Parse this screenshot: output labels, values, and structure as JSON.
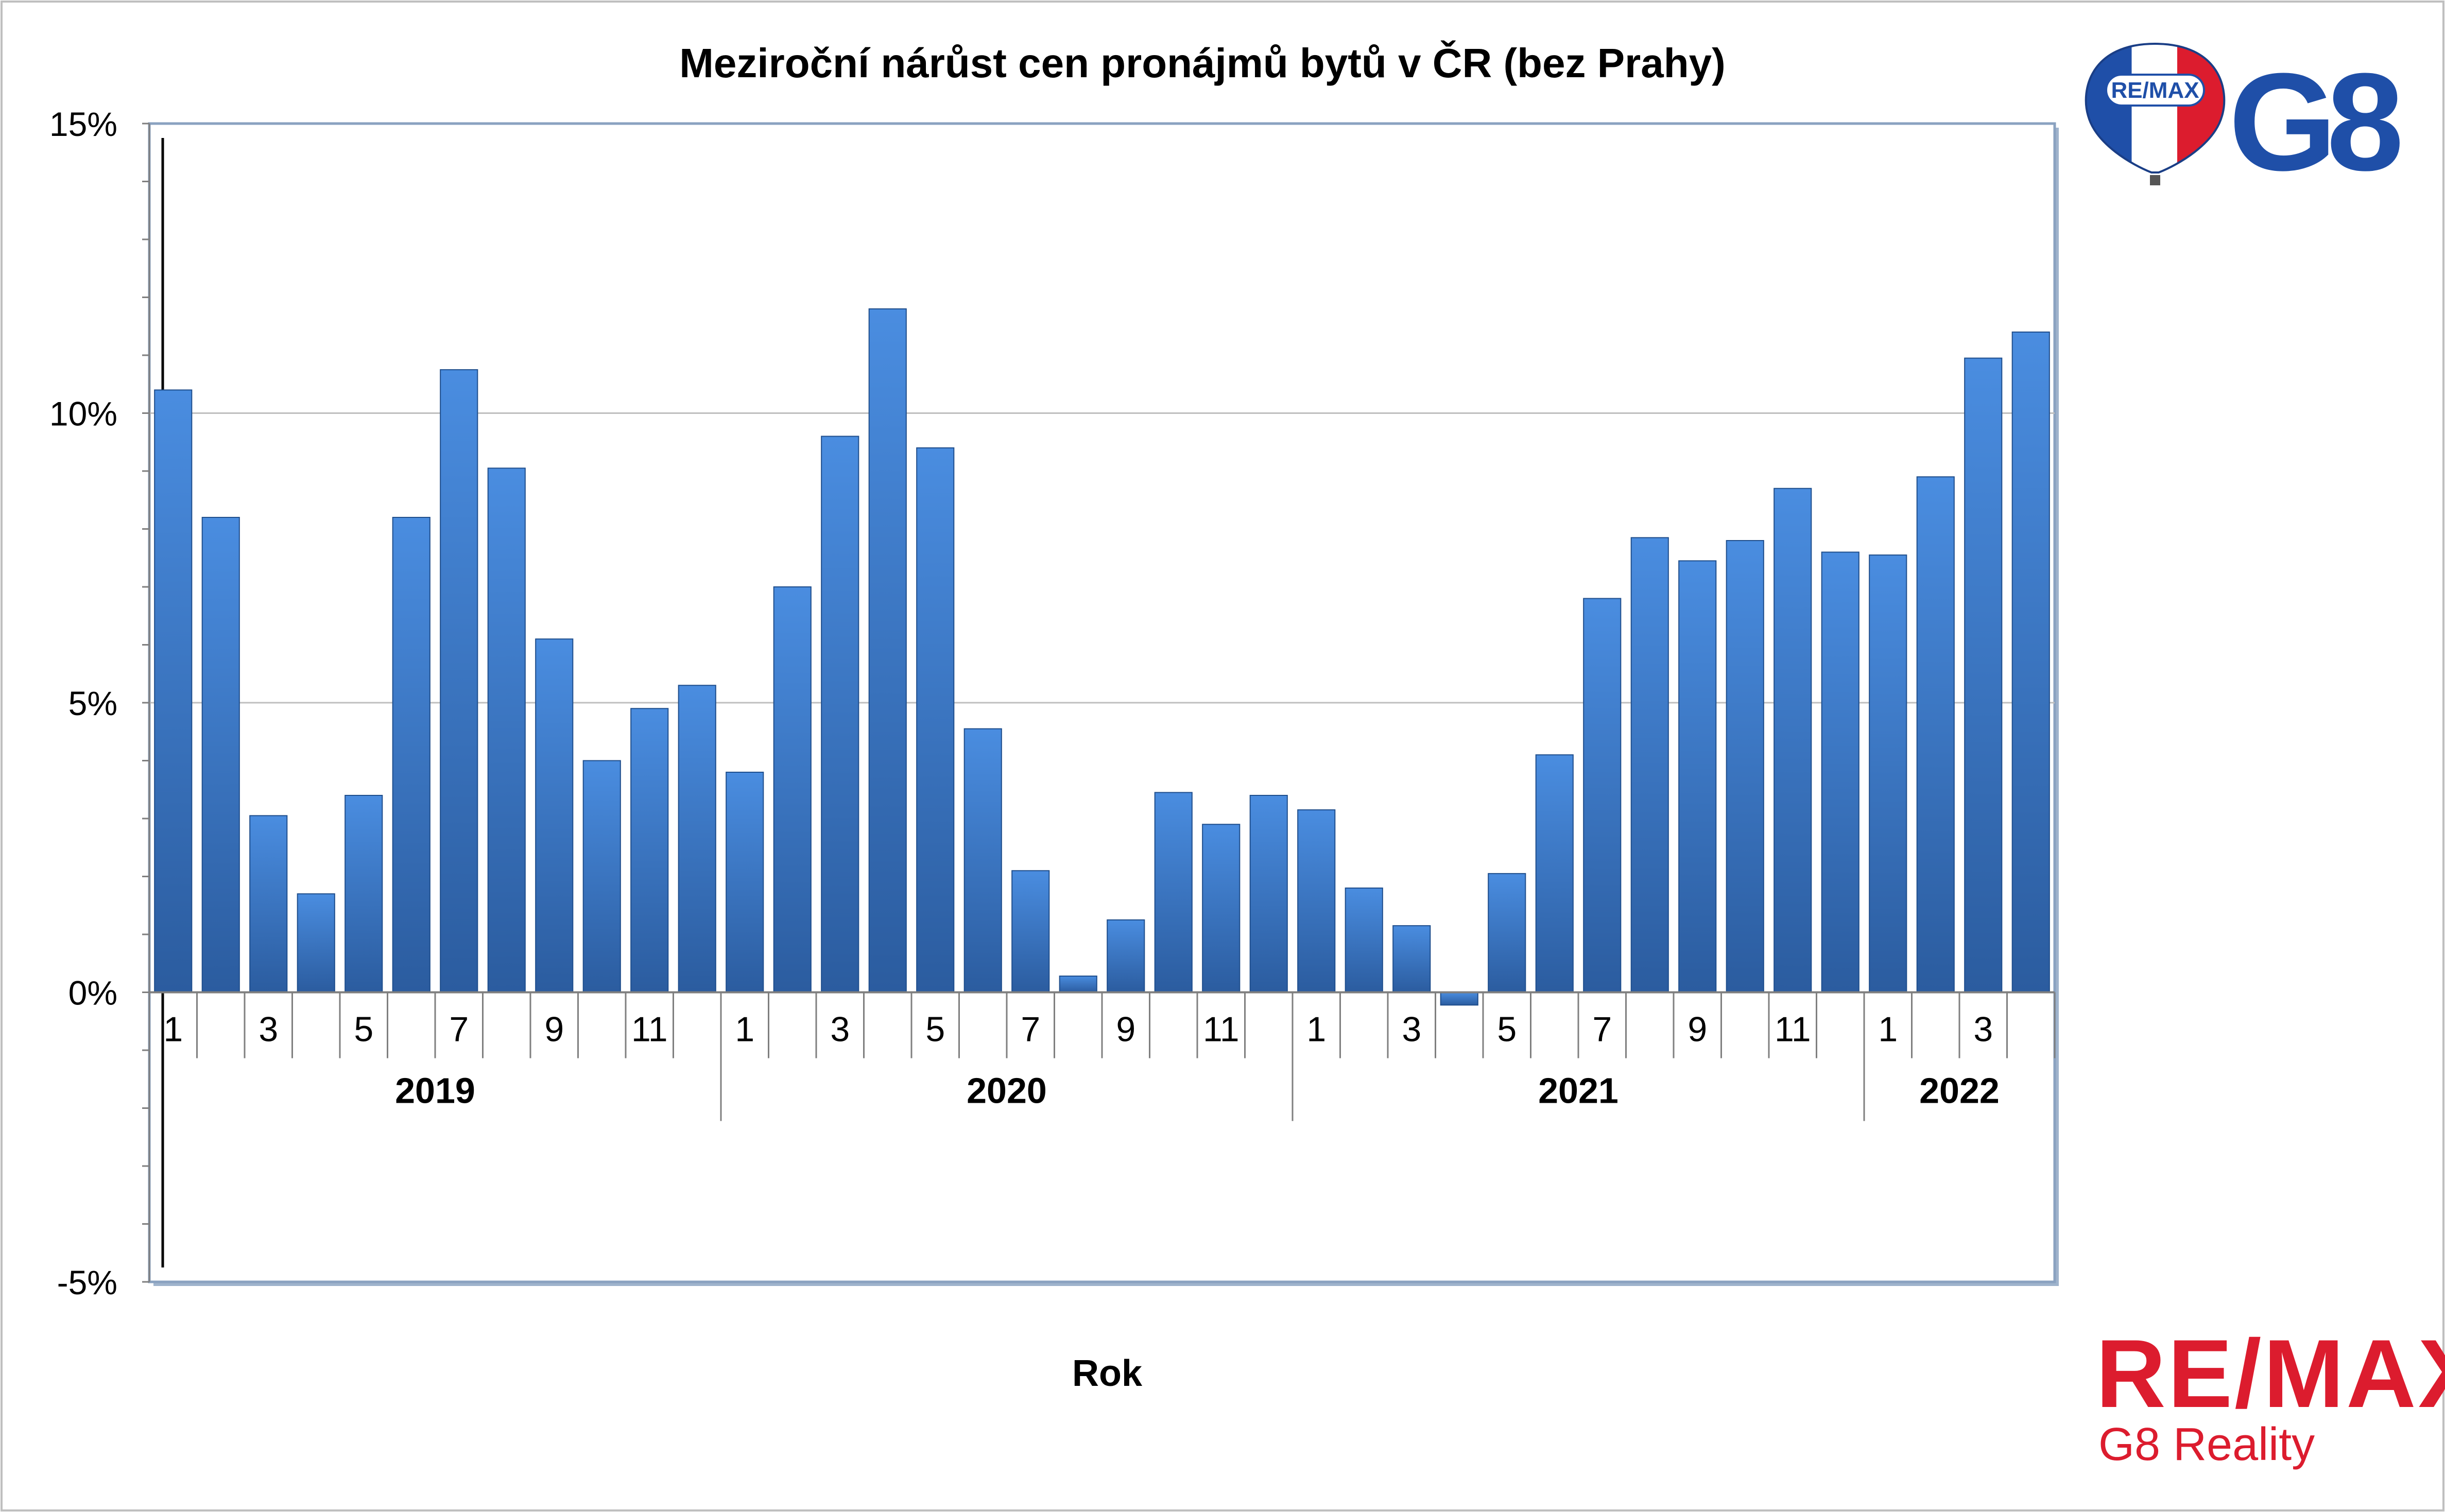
{
  "chart_data": {
    "type": "bar",
    "title": "Meziroční nárůst cen pronájmů bytů v ČR (bez Prahy)",
    "xlabel": "Rok",
    "ylabel": "",
    "ylim": [
      -5,
      15
    ],
    "yticks": [
      "-5%",
      "0%",
      "5%",
      "10%",
      "15%"
    ],
    "ytick_values": [
      -5,
      0,
      5,
      10,
      15
    ],
    "grid": true,
    "legend": "none",
    "years": [
      {
        "label": "2019",
        "months": 12
      },
      {
        "label": "2020",
        "months": 12
      },
      {
        "label": "2021",
        "months": 12
      },
      {
        "label": "2022",
        "months": 4
      }
    ],
    "month_labels": [
      "1",
      "",
      "3",
      "",
      "5",
      "",
      "7",
      "",
      "9",
      "",
      "11",
      "",
      "1",
      "",
      "3",
      "",
      "5",
      "",
      "7",
      "",
      "9",
      "",
      "11",
      "",
      "1",
      "",
      "3",
      "",
      "5",
      "",
      "7",
      "",
      "9",
      "",
      "11",
      "",
      "1",
      "",
      "3",
      ""
    ],
    "series": [
      {
        "values": [
          10.4,
          8.2,
          3.05,
          1.7,
          3.4,
          8.2,
          10.75,
          9.05,
          6.1,
          4.0,
          4.9,
          5.3,
          3.8,
          7.0,
          9.6,
          11.8,
          9.4,
          4.55,
          2.1,
          0.28,
          1.25,
          3.45,
          2.9,
          3.4,
          3.15,
          1.8,
          1.15,
          -0.22,
          2.05,
          4.1,
          6.8,
          7.85,
          7.45,
          7.8,
          8.7,
          7.6,
          7.55,
          8.9,
          10.95,
          11.4
        ]
      }
    ],
    "colors": {
      "bar_top": "#4a8de0",
      "bar_bottom": "#2b5c9f",
      "bar_edge": "#1f4e8c"
    }
  },
  "logos": {
    "balloon_text": "RE/MAX",
    "balloon_brand": "G8",
    "wordmark": "RE/MAX",
    "wordmark_sub": "G8 Reality",
    "brand_red": "#dc1c2e",
    "brand_blue": "#1f4fa8"
  }
}
